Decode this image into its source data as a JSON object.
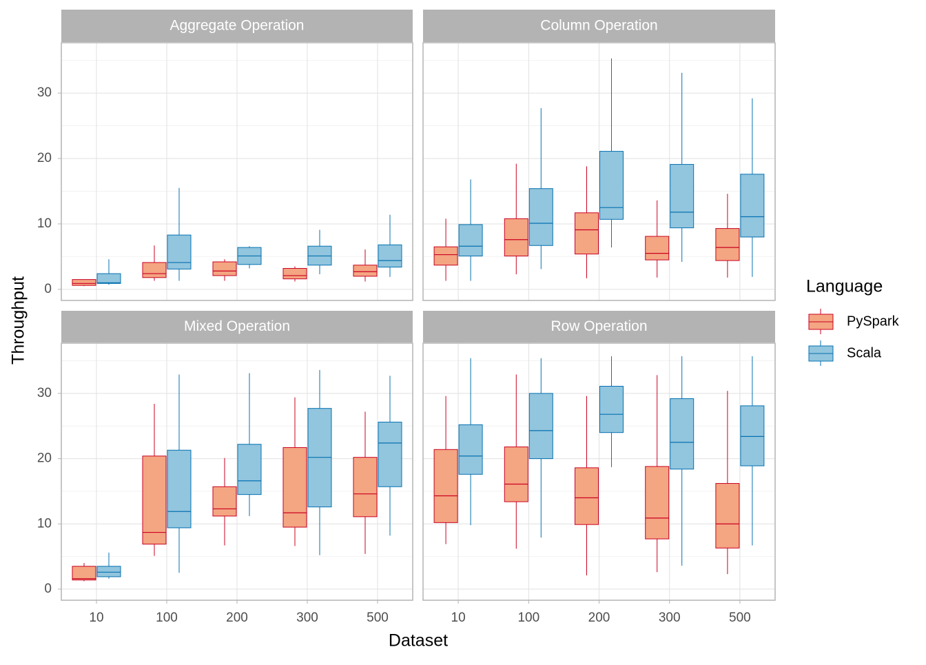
{
  "chart_data": {
    "type": "box",
    "xlabel": "Dataset",
    "ylabel": "Throughput",
    "legend_title": "Language",
    "categories": [
      "10",
      "100",
      "200",
      "300",
      "500"
    ],
    "ylim": [
      -1.7,
      37.7
    ],
    "yticks": [
      0,
      10,
      20,
      30
    ],
    "minor_yticks": [
      5,
      15,
      25,
      35
    ],
    "grid": true,
    "legend_position": "right",
    "series": [
      {
        "name": "PySpark",
        "color": "#ca0020",
        "fill": "#f4a582"
      },
      {
        "name": "Scala",
        "color": "#0571b0",
        "fill": "#92c5de"
      }
    ],
    "facets": [
      {
        "title": "Aggregate Operation",
        "series": [
          {
            "min": [
              0.5,
              1.3,
              1.3,
              1.2,
              1.2
            ],
            "q1": [
              0.6,
              1.8,
              2.1,
              1.6,
              2.0
            ],
            "median": [
              0.9,
              2.4,
              2.8,
              2.1,
              2.7
            ],
            "q3": [
              1.5,
              4.1,
              4.2,
              3.2,
              3.7
            ],
            "max": [
              1.5,
              6.7,
              4.6,
              3.5,
              6.1
            ]
          },
          {
            "min": [
              0.7,
              1.3,
              3.2,
              2.3,
              1.9
            ],
            "q1": [
              0.9,
              3.1,
              3.8,
              3.7,
              3.4
            ],
            "median": [
              1.0,
              4.1,
              5.1,
              5.1,
              4.4
            ],
            "q3": [
              2.4,
              8.3,
              6.4,
              6.6,
              6.8
            ],
            "max": [
              4.6,
              15.5,
              6.6,
              9.1,
              11.4
            ]
          }
        ]
      },
      {
        "title": "Column Operation",
        "series": [
          {
            "min": [
              1.3,
              2.3,
              1.7,
              1.8,
              1.8
            ],
            "q1": [
              3.7,
              5.1,
              5.4,
              4.5,
              4.4
            ],
            "median": [
              5.3,
              7.6,
              9.1,
              5.5,
              6.4
            ],
            "q3": [
              6.5,
              10.8,
              11.7,
              8.1,
              9.3
            ],
            "max": [
              10.8,
              19.2,
              18.8,
              13.6,
              14.6
            ]
          },
          {
            "min": [
              1.3,
              3.1,
              6.4,
              4.2,
              1.9
            ],
            "q1": [
              5.1,
              6.7,
              10.7,
              9.4,
              8.0
            ],
            "median": [
              6.6,
              10.1,
              12.5,
              11.8,
              11.1
            ],
            "q3": [
              9.9,
              15.4,
              21.1,
              19.1,
              17.6
            ],
            "max": [
              16.8,
              27.7,
              35.3,
              33.1,
              29.2
            ]
          }
        ]
      },
      {
        "title": "Mixed Operation",
        "series": [
          {
            "min": [
              1.2,
              5.1,
              6.7,
              6.6,
              5.4
            ],
            "q1": [
              1.4,
              6.9,
              11.2,
              9.5,
              11.1
            ],
            "median": [
              1.6,
              8.7,
              12.3,
              11.7,
              14.6
            ],
            "q3": [
              3.5,
              20.4,
              15.7,
              21.7,
              20.2
            ],
            "max": [
              4.0,
              28.4,
              20.1,
              29.4,
              27.2
            ]
          },
          {
            "min": [
              1.6,
              2.5,
              11.2,
              5.2,
              8.2
            ],
            "q1": [
              1.9,
              9.4,
              14.5,
              12.6,
              15.7
            ],
            "median": [
              2.6,
              11.9,
              16.6,
              20.2,
              22.4
            ],
            "q3": [
              3.5,
              21.3,
              22.2,
              27.7,
              25.6
            ],
            "max": [
              5.6,
              32.9,
              33.1,
              33.6,
              32.7
            ]
          }
        ]
      },
      {
        "title": "Row Operation",
        "series": [
          {
            "min": [
              6.9,
              6.2,
              2.1,
              2.6,
              2.3
            ],
            "q1": [
              10.2,
              13.4,
              9.9,
              7.7,
              6.3
            ],
            "median": [
              14.3,
              16.1,
              14.0,
              10.9,
              10.0
            ],
            "q3": [
              21.4,
              21.8,
              18.6,
              18.8,
              16.2
            ],
            "max": [
              29.6,
              32.9,
              29.6,
              32.8,
              30.4
            ]
          },
          {
            "min": [
              9.8,
              7.9,
              18.7,
              3.6,
              6.7
            ],
            "q1": [
              17.6,
              20.0,
              24.0,
              18.4,
              18.9
            ],
            "median": [
              20.4,
              24.3,
              26.8,
              22.5,
              23.4
            ],
            "q3": [
              25.2,
              30.0,
              31.1,
              29.2,
              28.1
            ],
            "max": [
              35.4,
              35.4,
              35.7,
              35.7,
              35.7
            ]
          }
        ]
      }
    ]
  }
}
